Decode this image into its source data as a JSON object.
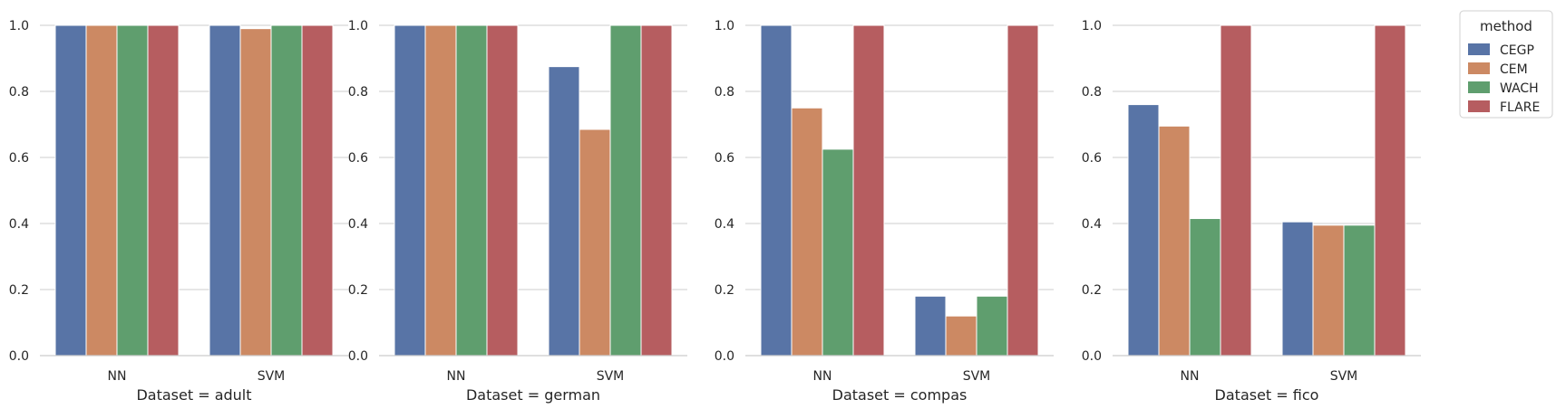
{
  "chart_data": {
    "type": "bar",
    "categories": [
      "NN",
      "SVM"
    ],
    "ylim": [
      0,
      1.0
    ],
    "yticks": [
      0.0,
      0.2,
      0.4,
      0.6,
      0.8,
      1.0
    ],
    "ytick_labels": [
      "0.0",
      "0.2",
      "0.4",
      "0.6",
      "0.8",
      "1.0"
    ],
    "grid": "horizontal",
    "legend": {
      "title": "method",
      "placement": "right",
      "entries": [
        {
          "name": "CEGP",
          "color": "#5874a6"
        },
        {
          "name": "CEM",
          "color": "#cc8963"
        },
        {
          "name": "WACH",
          "color": "#5f9e6e"
        },
        {
          "name": "FLARE",
          "color": "#b65d60"
        }
      ]
    },
    "panels": [
      {
        "xlabel": "Dataset = adult",
        "series": [
          {
            "name": "CEGP",
            "values": [
              1.0,
              1.0
            ]
          },
          {
            "name": "CEM",
            "values": [
              1.0,
              0.99
            ]
          },
          {
            "name": "WACH",
            "values": [
              1.0,
              1.0
            ]
          },
          {
            "name": "FLARE",
            "values": [
              1.0,
              1.0
            ]
          }
        ]
      },
      {
        "xlabel": "Dataset = german",
        "series": [
          {
            "name": "CEGP",
            "values": [
              1.0,
              0.875
            ]
          },
          {
            "name": "CEM",
            "values": [
              1.0,
              0.685
            ]
          },
          {
            "name": "WACH",
            "values": [
              1.0,
              1.0
            ]
          },
          {
            "name": "FLARE",
            "values": [
              1.0,
              1.0
            ]
          }
        ]
      },
      {
        "xlabel": "Dataset = compas",
        "series": [
          {
            "name": "CEGP",
            "values": [
              1.0,
              0.18
            ]
          },
          {
            "name": "CEM",
            "values": [
              0.75,
              0.12
            ]
          },
          {
            "name": "WACH",
            "values": [
              0.625,
              0.18
            ]
          },
          {
            "name": "FLARE",
            "values": [
              1.0,
              1.0
            ]
          }
        ]
      },
      {
        "xlabel": "Dataset = fico",
        "series": [
          {
            "name": "CEGP",
            "values": [
              0.76,
              0.405
            ]
          },
          {
            "name": "CEM",
            "values": [
              0.695,
              0.395
            ]
          },
          {
            "name": "WACH",
            "values": [
              0.415,
              0.395
            ]
          },
          {
            "name": "FLARE",
            "values": [
              1.0,
              1.0
            ]
          }
        ]
      }
    ]
  }
}
